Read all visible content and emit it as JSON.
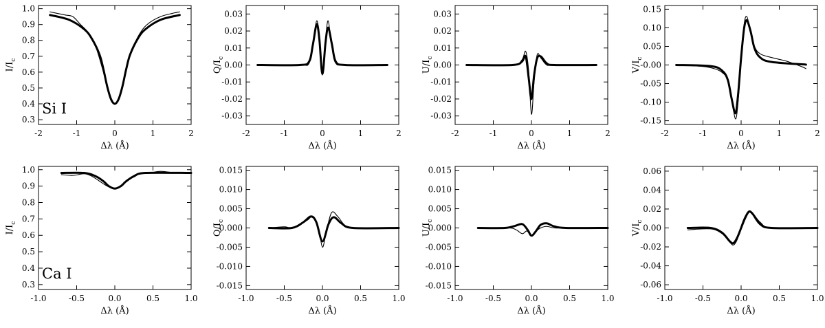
{
  "charts": [
    {
      "type": "line",
      "tag": "Si I",
      "ylabel_main": "I/I",
      "ylabel_sub": "c",
      "xlabel": "Δλ (Å)",
      "xlim": [
        -2,
        2
      ],
      "ylim": [
        0.27,
        1.02
      ],
      "xticks": [
        -2,
        -1,
        0,
        1,
        2
      ],
      "xtick_labels": [
        "-2",
        "-1",
        "0",
        "1",
        "2"
      ],
      "yticks": [
        0.3,
        0.4,
        0.5,
        0.6,
        0.7,
        0.8,
        0.9,
        1.0
      ],
      "ytick_labels": [
        "0.3",
        "0.4",
        "0.5",
        "0.6",
        "0.7",
        "0.8",
        "0.9",
        "1.0"
      ],
      "series": [
        {
          "style": "thick",
          "x": [
            -1.7,
            -1.2,
            -0.8,
            -0.6,
            -0.4,
            -0.3,
            -0.2,
            -0.1,
            0.0,
            0.1,
            0.2,
            0.3,
            0.4,
            0.6,
            0.8,
            1.2,
            1.7
          ],
          "y": [
            0.96,
            0.93,
            0.87,
            0.81,
            0.71,
            0.62,
            0.51,
            0.43,
            0.4,
            0.43,
            0.51,
            0.62,
            0.71,
            0.81,
            0.87,
            0.93,
            0.96
          ]
        },
        {
          "style": "thin",
          "x": [
            -1.7,
            -1.5,
            -1.3,
            -1.1,
            -0.9,
            -0.7,
            -0.5,
            -0.3,
            -0.2,
            -0.1,
            0.0,
            0.1,
            0.2,
            0.3,
            0.5,
            0.7,
            0.9,
            1.2,
            1.5,
            1.7
          ],
          "y": [
            0.98,
            0.97,
            0.96,
            0.95,
            0.9,
            0.85,
            0.76,
            0.6,
            0.5,
            0.42,
            0.4,
            0.43,
            0.52,
            0.63,
            0.77,
            0.86,
            0.91,
            0.95,
            0.97,
            0.98
          ]
        }
      ]
    },
    {
      "type": "line",
      "tag": "",
      "ylabel_main": "Q/I",
      "ylabel_sub": "c",
      "xlabel": "Δλ (Å)",
      "xlim": [
        -2,
        2
      ],
      "ylim": [
        -0.035,
        0.035
      ],
      "xticks": [
        -2,
        -1,
        0,
        1,
        2
      ],
      "xtick_labels": [
        "-2",
        "-1",
        "0",
        "1",
        "2"
      ],
      "yticks": [
        -0.03,
        -0.02,
        -0.01,
        0.0,
        0.01,
        0.02,
        0.03
      ],
      "ytick_labels": [
        "-0.03",
        "-0.02",
        "-0.01",
        "0.00",
        "0.01",
        "0.02",
        "0.03"
      ],
      "series": [
        {
          "style": "thick",
          "x": [
            -1.7,
            -0.6,
            -0.35,
            -0.25,
            -0.15,
            -0.08,
            -0.02,
            0.02,
            0.08,
            0.15,
            0.25,
            0.35,
            0.6,
            1.7
          ],
          "y": [
            0.0,
            0.0,
            0.002,
            0.012,
            0.024,
            0.015,
            -0.003,
            -0.003,
            0.013,
            0.022,
            0.012,
            0.002,
            0.0,
            0.0
          ]
        },
        {
          "style": "thin",
          "x": [
            -1.7,
            -0.6,
            -0.35,
            -0.25,
            -0.15,
            -0.08,
            -0.02,
            0.02,
            0.08,
            0.15,
            0.25,
            0.35,
            0.6,
            1.7
          ],
          "y": [
            0.0,
            0.0,
            0.001,
            0.013,
            0.026,
            0.016,
            -0.004,
            -0.003,
            0.014,
            0.026,
            0.01,
            0.001,
            0.0,
            0.0
          ]
        }
      ]
    },
    {
      "type": "line",
      "tag": "",
      "ylabel_main": "U/I",
      "ylabel_sub": "c",
      "xlabel": "Δλ (Å)",
      "xlim": [
        -2,
        2
      ],
      "ylim": [
        -0.035,
        0.035
      ],
      "xticks": [
        -2,
        -1,
        0,
        1,
        2
      ],
      "xtick_labels": [
        "-2",
        "-1",
        "0",
        "1",
        "2"
      ],
      "yticks": [
        -0.03,
        -0.02,
        -0.01,
        0.0,
        0.01,
        0.02,
        0.03
      ],
      "ytick_labels": [
        "-0.03",
        "-0.02",
        "-0.01",
        "0.00",
        "0.01",
        "0.02",
        "0.03"
      ],
      "series": [
        {
          "style": "thick",
          "x": [
            -1.7,
            -0.5,
            -0.25,
            -0.15,
            -0.07,
            0.0,
            0.07,
            0.15,
            0.25,
            0.4,
            0.6,
            1.7
          ],
          "y": [
            0.0,
            0.0,
            0.002,
            0.005,
            -0.008,
            -0.02,
            -0.006,
            0.004,
            0.005,
            0.001,
            0.0,
            0.0
          ]
        },
        {
          "style": "thin",
          "x": [
            -1.7,
            -0.5,
            -0.25,
            -0.15,
            -0.07,
            0.0,
            0.07,
            0.15,
            0.25,
            0.4,
            0.6,
            1.7
          ],
          "y": [
            0.0,
            0.0,
            0.003,
            0.008,
            -0.004,
            -0.029,
            -0.01,
            0.006,
            0.004,
            0.0,
            0.0,
            0.0
          ]
        }
      ]
    },
    {
      "type": "line",
      "tag": "",
      "ylabel_main": "V/I",
      "ylabel_sub": "c",
      "xlabel": "Δλ (Å)",
      "xlim": [
        -2,
        2
      ],
      "ylim": [
        -0.16,
        0.16
      ],
      "xticks": [
        -2,
        -1,
        0,
        1,
        2
      ],
      "xtick_labels": [
        "-2",
        "-1",
        "0",
        "1",
        "2"
      ],
      "yticks": [
        -0.15,
        -0.1,
        -0.05,
        0.0,
        0.05,
        0.1,
        0.15
      ],
      "ytick_labels": [
        "-0.15",
        "-0.10",
        "-0.05",
        "-0.00",
        "0.05",
        "0.10",
        "0.15"
      ],
      "series": [
        {
          "style": "thick",
          "x": [
            -1.7,
            -0.8,
            -0.5,
            -0.35,
            -0.25,
            -0.15,
            -0.08,
            0.0,
            0.08,
            0.15,
            0.25,
            0.35,
            0.5,
            0.8,
            1.7
          ],
          "y": [
            0.0,
            -0.003,
            -0.015,
            -0.04,
            -0.09,
            -0.13,
            -0.08,
            0.02,
            0.1,
            0.12,
            0.09,
            0.045,
            0.02,
            0.008,
            0.001
          ]
        },
        {
          "style": "thin",
          "x": [
            -1.7,
            -1.0,
            -0.7,
            -0.5,
            -0.35,
            -0.25,
            -0.15,
            -0.08,
            0.0,
            0.08,
            0.15,
            0.25,
            0.35,
            0.5,
            0.8,
            1.2,
            1.6,
            1.7
          ],
          "y": [
            0.0,
            -0.004,
            -0.01,
            -0.02,
            -0.04,
            -0.09,
            -0.145,
            -0.1,
            0.02,
            0.11,
            0.13,
            0.09,
            0.05,
            0.03,
            0.02,
            0.01,
            -0.005,
            -0.01
          ]
        }
      ]
    },
    {
      "type": "line",
      "tag": "Ca I",
      "ylabel_main": "I/I",
      "ylabel_sub": "c",
      "xlabel": "Δλ (Å)",
      "xlim": [
        -1.0,
        1.0
      ],
      "ylim": [
        0.27,
        1.02
      ],
      "xticks": [
        -1.0,
        -0.5,
        0.0,
        0.5,
        1.0
      ],
      "xtick_labels": [
        "-1.0",
        "-0.5",
        "0.0",
        "0.5",
        "1.0"
      ],
      "yticks": [
        0.3,
        0.4,
        0.5,
        0.6,
        0.7,
        0.8,
        0.9,
        1.0
      ],
      "ytick_labels": [
        "0.3",
        "0.4",
        "0.5",
        "0.6",
        "0.7",
        "0.8",
        "0.9",
        "1.0"
      ],
      "series": [
        {
          "style": "thick",
          "x": [
            -0.7,
            -0.4,
            -0.25,
            -0.15,
            -0.08,
            0.0,
            0.08,
            0.15,
            0.25,
            0.4,
            1.0
          ],
          "y": [
            0.98,
            0.98,
            0.96,
            0.93,
            0.9,
            0.885,
            0.9,
            0.93,
            0.96,
            0.98,
            0.98
          ]
        },
        {
          "style": "thin",
          "x": [
            -0.7,
            -0.55,
            -0.4,
            -0.3,
            -0.2,
            -0.1,
            0.0,
            0.1,
            0.2,
            0.3,
            0.45,
            0.6,
            0.8,
            1.0
          ],
          "y": [
            0.97,
            0.965,
            0.975,
            0.96,
            0.93,
            0.9,
            0.885,
            0.91,
            0.95,
            0.975,
            0.98,
            0.99,
            0.98,
            0.98
          ]
        }
      ]
    },
    {
      "type": "line",
      "tag": "",
      "ylabel_main": "Q/I",
      "ylabel_sub": "c",
      "xlabel": "Δλ (Å)",
      "xlim": [
        -1.0,
        1.0
      ],
      "ylim": [
        -0.016,
        0.016
      ],
      "xticks": [
        -1.0,
        -0.5,
        0.0,
        0.5,
        1.0
      ],
      "xtick_labels": [
        "-1.0",
        "-0.5",
        "0.0",
        "0.5",
        "1.0"
      ],
      "yticks": [
        -0.015,
        -0.01,
        -0.005,
        0.0,
        0.005,
        0.01,
        0.015
      ],
      "ytick_labels": [
        "-0.015",
        "-0.010",
        "-0.005",
        "0.000",
        "0.005",
        "0.010",
        "0.015"
      ],
      "series": [
        {
          "style": "thick",
          "x": [
            -0.7,
            -0.4,
            -0.25,
            -0.15,
            -0.08,
            0.0,
            0.08,
            0.15,
            0.25,
            0.4,
            1.0
          ],
          "y": [
            0.0,
            0.0,
            0.0015,
            0.003,
            0.0015,
            -0.0035,
            0.001,
            0.0028,
            0.0012,
            0.0,
            0.0
          ]
        },
        {
          "style": "thin",
          "x": [
            -0.7,
            -0.5,
            -0.4,
            -0.3,
            -0.2,
            -0.12,
            -0.05,
            0.0,
            0.05,
            0.12,
            0.2,
            0.3,
            0.45,
            1.0
          ],
          "y": [
            0.0,
            0.0003,
            0.0,
            0.001,
            0.002,
            0.003,
            0.0,
            -0.005,
            -0.001,
            0.004,
            0.003,
            0.0006,
            0.0,
            0.0
          ]
        }
      ]
    },
    {
      "type": "line",
      "tag": "",
      "ylabel_main": "U/I",
      "ylabel_sub": "c",
      "xlabel": "Δλ (Å)",
      "xlim": [
        -1.0,
        1.0
      ],
      "ylim": [
        -0.016,
        0.016
      ],
      "xticks": [
        -1.0,
        -0.5,
        0.0,
        0.5,
        1.0
      ],
      "xtick_labels": [
        "-1.0",
        "-0.5",
        "0.0",
        "0.5",
        "1.0"
      ],
      "yticks": [
        -0.015,
        -0.01,
        -0.005,
        0.0,
        0.005,
        0.01,
        0.015
      ],
      "ytick_labels": [
        "-0.015",
        "-0.010",
        "-0.005",
        "0.000",
        "0.005",
        "0.010",
        "0.015"
      ],
      "series": [
        {
          "style": "thick",
          "x": [
            -0.7,
            -0.35,
            -0.22,
            -0.12,
            -0.05,
            0.0,
            0.06,
            0.12,
            0.2,
            0.3,
            0.45,
            1.0
          ],
          "y": [
            0.0,
            0.0,
            0.0005,
            0.001,
            -0.0005,
            -0.002,
            -0.0008,
            0.0008,
            0.0012,
            0.0004,
            0.0,
            0.0
          ]
        },
        {
          "style": "thin",
          "x": [
            -0.7,
            -0.3,
            -0.2,
            -0.12,
            -0.06,
            0.0,
            0.05,
            0.12,
            0.2,
            0.3,
            0.45,
            1.0
          ],
          "y": [
            0.0,
            0.0,
            -0.0005,
            -0.0015,
            -0.0008,
            -0.002,
            -0.001,
            0.0,
            0.0004,
            0.0,
            0.0,
            0.0
          ]
        }
      ]
    },
    {
      "type": "line",
      "tag": "",
      "ylabel_main": "V/I",
      "ylabel_sub": "c",
      "xlabel": "Δλ (Å)",
      "xlim": [
        -1.0,
        1.0
      ],
      "ylim": [
        -0.065,
        0.065
      ],
      "xticks": [
        -1.0,
        -0.5,
        0.0,
        0.5,
        1.0
      ],
      "xtick_labels": [
        "-1.0",
        "-0.5",
        "0.0",
        "0.5",
        "1.0"
      ],
      "yticks": [
        -0.06,
        -0.04,
        -0.02,
        0.0,
        0.02,
        0.04,
        0.06
      ],
      "ytick_labels": [
        "-0.06",
        "-0.04",
        "-0.02",
        "0.00",
        "0.02",
        "0.04",
        "0.06"
      ],
      "series": [
        {
          "style": "thick",
          "x": [
            -0.7,
            -0.4,
            -0.25,
            -0.15,
            -0.1,
            -0.05,
            0.0,
            0.05,
            0.1,
            0.15,
            0.25,
            0.4,
            1.0
          ],
          "y": [
            0.0,
            0.0,
            -0.005,
            -0.014,
            -0.016,
            -0.01,
            0.0,
            0.01,
            0.017,
            0.015,
            0.004,
            0.0,
            0.0
          ]
        },
        {
          "style": "thin",
          "x": [
            -0.7,
            -0.4,
            -0.25,
            -0.15,
            -0.1,
            -0.05,
            0.0,
            0.05,
            0.1,
            0.15,
            0.25,
            0.4,
            1.0
          ],
          "y": [
            -0.002,
            -0.001,
            -0.006,
            -0.015,
            -0.018,
            -0.012,
            0.002,
            0.012,
            0.018,
            0.016,
            0.006,
            0.0,
            0.0
          ]
        }
      ]
    }
  ]
}
